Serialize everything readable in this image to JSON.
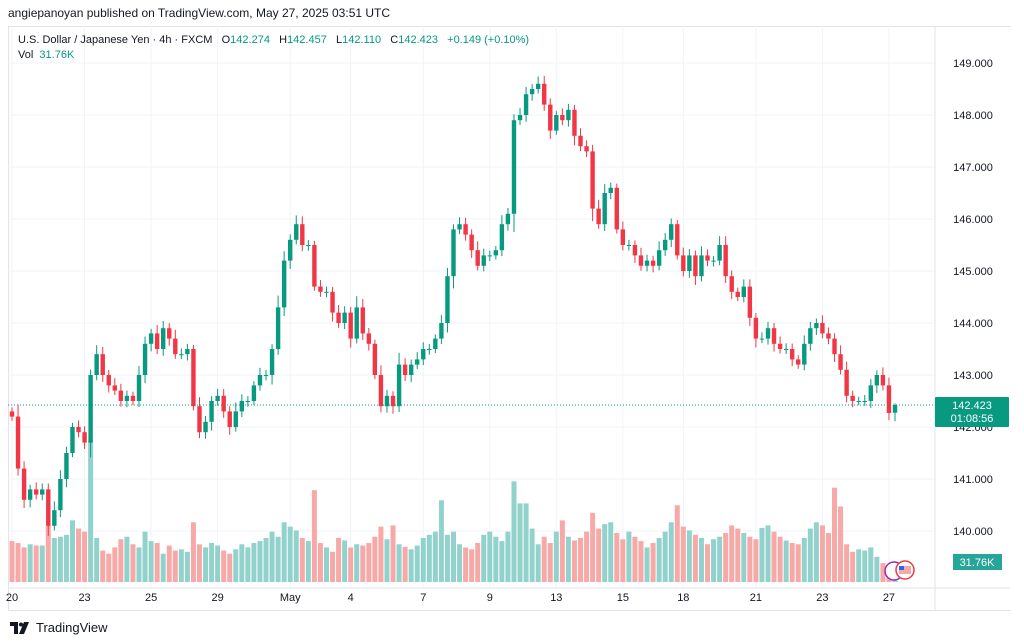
{
  "publisher_line": "angiepanoyan published on TradingView.com, May 27, 2025 03:51 UTC",
  "legend": {
    "symbol": "U.S. Dollar / Japanese Yen · 4h · FXCM",
    "o_label": "O",
    "o": "142.274",
    "h_label": "H",
    "h": "142.457",
    "l_label": "L",
    "l": "142.110",
    "c_label": "C",
    "c": "142.423",
    "change": "+0.149 (+0.10%)",
    "vol_label": "Vol",
    "vol": "31.76K"
  },
  "price_badge": {
    "price": "142.423",
    "countdown": "01:08:56"
  },
  "volume_badge": "31.76K",
  "footer_brand": "TradingView",
  "colors": {
    "up": "#089981",
    "down": "#f23645",
    "vol_up": "#92d2cc",
    "vol_down": "#f7a9a7",
    "grid": "#f0f3fa"
  },
  "chart_data": {
    "type": "candlestick",
    "title": "U.S. Dollar / Japanese Yen · 4h · FXCM",
    "price_ticks": [
      "149.000",
      "148.000",
      "147.000",
      "146.000",
      "145.000",
      "144.000",
      "143.000",
      "142.000",
      "141.000",
      "140.000"
    ],
    "price_range": [
      139.0,
      149.5
    ],
    "date_ticks": [
      "20",
      "23",
      "25",
      "29",
      "May",
      "4",
      "7",
      "9",
      "13",
      "15",
      "18",
      "21",
      "23",
      "27"
    ],
    "date_tick_index": [
      0,
      12,
      23,
      34,
      46,
      56,
      68,
      79,
      90,
      101,
      111,
      123,
      134,
      145
    ],
    "first_open": 142.3,
    "closes": [
      142.2,
      141.2,
      140.6,
      140.8,
      140.7,
      140.8,
      140.1,
      140.4,
      141.0,
      141.5,
      142.0,
      141.9,
      141.7,
      143.0,
      143.4,
      143.0,
      142.8,
      142.7,
      142.5,
      142.6,
      142.5,
      143.0,
      143.6,
      143.8,
      143.5,
      143.9,
      143.7,
      143.4,
      143.4,
      143.5,
      142.4,
      141.9,
      142.1,
      142.5,
      142.6,
      142.3,
      142.0,
      142.3,
      142.5,
      142.5,
      142.8,
      143.0,
      143.0,
      143.5,
      144.3,
      145.2,
      145.6,
      145.9,
      145.5,
      145.5,
      144.7,
      144.6,
      144.6,
      144.2,
      144.0,
      144.2,
      143.7,
      144.3,
      143.8,
      143.6,
      143.0,
      142.4,
      142.6,
      142.4,
      143.2,
      143.0,
      143.2,
      143.3,
      143.5,
      143.5,
      143.7,
      144.0,
      144.9,
      145.8,
      145.9,
      145.7,
      145.4,
      145.1,
      145.3,
      145.3,
      145.4,
      145.9,
      146.1,
      147.9,
      148.0,
      148.4,
      148.5,
      148.6,
      148.2,
      147.7,
      148.0,
      147.9,
      148.1,
      147.6,
      147.4,
      147.3,
      146.2,
      145.9,
      146.5,
      146.6,
      145.8,
      145.5,
      145.5,
      145.3,
      145.1,
      145.2,
      145.1,
      145.4,
      145.6,
      145.9,
      145.3,
      145.0,
      145.3,
      144.9,
      145.3,
      145.2,
      145.2,
      145.5,
      144.9,
      144.6,
      144.5,
      144.7,
      144.1,
      143.7,
      143.7,
      143.9,
      143.6,
      143.5,
      143.5,
      143.3,
      143.2,
      143.6,
      143.9,
      144.0,
      143.8,
      143.7,
      143.4,
      143.1,
      142.6,
      142.5,
      142.5,
      142.5,
      142.8,
      143.0,
      142.8,
      142.27,
      142.423
    ],
    "last_candle": {
      "open": 142.274,
      "high": 142.457,
      "low": 142.11,
      "close": 142.423
    },
    "volumes_k": [
      65,
      62,
      55,
      60,
      58,
      58,
      90,
      70,
      72,
      75,
      98,
      85,
      80,
      225,
      70,
      50,
      45,
      55,
      68,
      72,
      60,
      55,
      80,
      65,
      62,
      45,
      58,
      50,
      52,
      48,
      95,
      60,
      55,
      62,
      58,
      50,
      45,
      52,
      60,
      55,
      62,
      65,
      70,
      80,
      72,
      95,
      88,
      82,
      70,
      65,
      146,
      62,
      55,
      48,
      70,
      66,
      55,
      60,
      58,
      62,
      72,
      88,
      68,
      90,
      60,
      56,
      52,
      58,
      70,
      75,
      80,
      130,
      75,
      80,
      60,
      55,
      52,
      62,
      75,
      80,
      72,
      65,
      80,
      160,
      125,
      125,
      85,
      60,
      72,
      62,
      80,
      98,
      72,
      66,
      70,
      80,
      110,
      85,
      92,
      95,
      78,
      68,
      80,
      72,
      65,
      55,
      62,
      70,
      80,
      95,
      122,
      88,
      82,
      75,
      70,
      60,
      68,
      72,
      78,
      90,
      85,
      78,
      72,
      68,
      86,
      90,
      80,
      72,
      66,
      62,
      60,
      70,
      85,
      95,
      90,
      78,
      150,
      120,
      60,
      48,
      52,
      50,
      55,
      40,
      30,
      25,
      31.76
    ]
  }
}
